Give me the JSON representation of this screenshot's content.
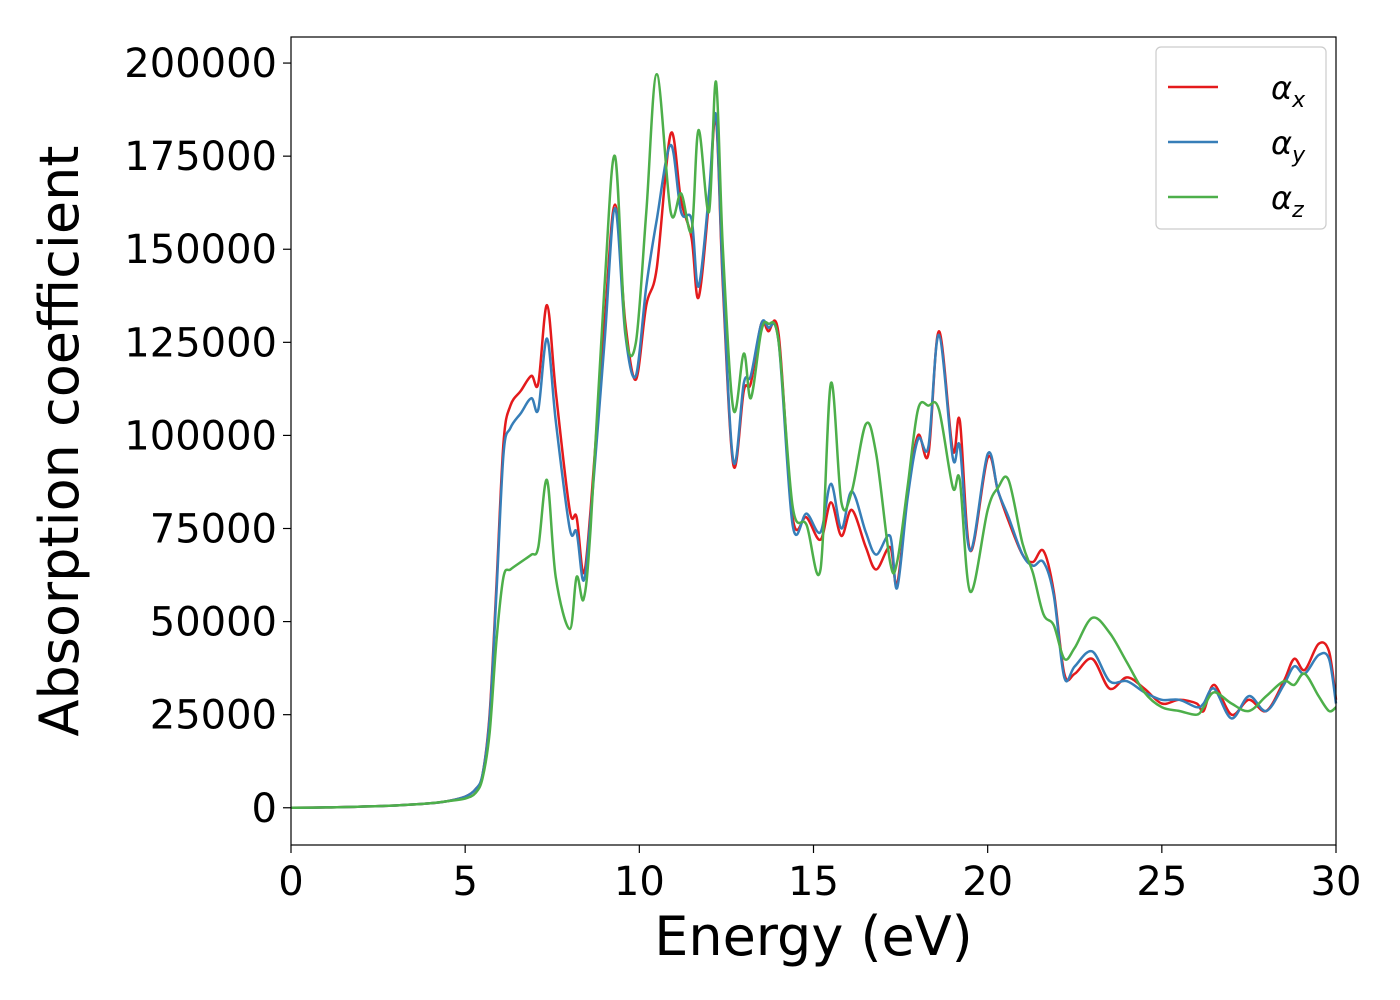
{
  "chart_data": {
    "type": "line",
    "xlabel": "Energy (eV)",
    "ylabel": "Absorption coefficient",
    "xlim": [
      0,
      30
    ],
    "ylim": [
      -10000,
      207000
    ],
    "xticks": [
      0,
      5,
      10,
      15,
      20,
      25,
      30
    ],
    "yticks": [
      0,
      25000,
      50000,
      75000,
      100000,
      125000,
      150000,
      175000,
      200000
    ],
    "grid": false,
    "legend_position": "top-right",
    "colors": {
      "alpha_x": "#e41a1c",
      "alpha_y": "#377eb8",
      "alpha_z": "#4daf4a"
    },
    "series": [
      {
        "key": "alpha_x",
        "name": "α_x",
        "legend_base": "α",
        "legend_sub": "x",
        "color": "#e41a1c",
        "x": [
          0,
          1,
          2,
          3,
          4,
          4.5,
          5,
          5.3,
          5.5,
          5.7,
          5.9,
          6.1,
          6.3,
          6.6,
          6.9,
          7.1,
          7.35,
          7.6,
          8.0,
          8.2,
          8.4,
          8.6,
          9.0,
          9.3,
          9.6,
          9.9,
          10.2,
          10.5,
          10.9,
          11.2,
          11.5,
          11.7,
          12.0,
          12.2,
          12.4,
          12.7,
          13.0,
          13.2,
          13.5,
          13.7,
          14.0,
          14.4,
          14.8,
          15.2,
          15.5,
          15.8,
          16.1,
          16.5,
          16.8,
          17.2,
          17.4,
          17.7,
          18.0,
          18.3,
          18.6,
          19.0,
          19.2,
          19.5,
          20.0,
          20.3,
          20.6,
          21.0,
          21.3,
          21.6,
          21.9,
          22.2,
          22.5,
          23.0,
          23.5,
          24.0,
          24.5,
          25.0,
          25.5,
          26.0,
          26.2,
          26.5,
          27.0,
          27.5,
          28.0,
          28.5,
          28.8,
          29.1,
          29.5,
          29.8,
          30.0
        ],
        "values": [
          0,
          100,
          300,
          600,
          1200,
          1800,
          3000,
          5000,
          9000,
          25000,
          60000,
          98000,
          108000,
          112000,
          116000,
          114000,
          135000,
          112000,
          80000,
          78000,
          63000,
          80000,
          130000,
          162000,
          130000,
          115000,
          135000,
          145000,
          181000,
          163000,
          153000,
          137000,
          163000,
          185000,
          140000,
          92000,
          112000,
          114000,
          130000,
          128000,
          127000,
          78000,
          78000,
          72000,
          82000,
          73000,
          80000,
          70000,
          64000,
          70000,
          60000,
          84000,
          100000,
          95000,
          128000,
          96000,
          104000,
          69000,
          94000,
          85000,
          77000,
          68000,
          66000,
          69000,
          58000,
          36000,
          36000,
          40000,
          32000,
          35000,
          32000,
          28000,
          29000,
          28000,
          26000,
          33000,
          25000,
          29000,
          26000,
          34000,
          40000,
          37000,
          44000,
          42000,
          29000
        ],
        "stroke": "#e41a1c"
      },
      {
        "key": "alpha_y",
        "name": "α_y",
        "legend_base": "α",
        "legend_sub": "y",
        "color": "#377eb8",
        "x": [
          0,
          1,
          2,
          3,
          4,
          4.5,
          5,
          5.3,
          5.5,
          5.7,
          5.9,
          6.1,
          6.3,
          6.6,
          6.9,
          7.1,
          7.35,
          7.6,
          8.0,
          8.2,
          8.4,
          8.6,
          9.0,
          9.3,
          9.6,
          9.9,
          10.2,
          10.5,
          10.9,
          11.2,
          11.5,
          11.7,
          12.0,
          12.2,
          12.4,
          12.7,
          13.0,
          13.2,
          13.5,
          13.7,
          14.0,
          14.4,
          14.8,
          15.2,
          15.5,
          15.8,
          16.1,
          16.5,
          16.8,
          17.2,
          17.4,
          17.7,
          18.0,
          18.3,
          18.6,
          19.0,
          19.2,
          19.5,
          20.0,
          20.3,
          20.6,
          21.0,
          21.3,
          21.6,
          21.9,
          22.2,
          22.5,
          23.0,
          23.5,
          24.0,
          24.5,
          25.0,
          25.5,
          26.0,
          26.2,
          26.5,
          27.0,
          27.5,
          28.0,
          28.5,
          28.8,
          29.1,
          29.5,
          29.8,
          30.0
        ],
        "values": [
          0,
          100,
          300,
          600,
          1200,
          1800,
          3000,
          5000,
          9000,
          24000,
          58000,
          95000,
          102000,
          106000,
          110000,
          107000,
          126000,
          104000,
          75000,
          74000,
          61000,
          78000,
          125000,
          161000,
          127000,
          116000,
          140000,
          158000,
          178000,
          160000,
          158000,
          140000,
          165000,
          186000,
          142000,
          93000,
          114000,
          116000,
          130000,
          129000,
          125000,
          76000,
          79000,
          74000,
          87000,
          75000,
          85000,
          74000,
          68000,
          73000,
          59000,
          83000,
          99000,
          97000,
          127000,
          94000,
          97000,
          69000,
          95000,
          85000,
          78000,
          68000,
          65000,
          66000,
          57000,
          35000,
          38000,
          42000,
          34000,
          34000,
          31000,
          29000,
          29000,
          27000,
          28000,
          32000,
          24000,
          30000,
          26000,
          33000,
          38000,
          36000,
          41000,
          40000,
          28000
        ],
        "stroke": "#377eb8"
      },
      {
        "key": "alpha_z",
        "name": "α_z",
        "legend_base": "α",
        "legend_sub": "z",
        "color": "#4daf4a",
        "x": [
          0,
          1,
          2,
          3,
          4,
          4.5,
          5,
          5.3,
          5.5,
          5.7,
          5.9,
          6.1,
          6.3,
          6.6,
          6.9,
          7.1,
          7.35,
          7.6,
          8.0,
          8.2,
          8.4,
          8.6,
          9.0,
          9.3,
          9.6,
          9.9,
          10.2,
          10.5,
          10.9,
          11.2,
          11.5,
          11.7,
          12.0,
          12.2,
          12.4,
          12.7,
          13.0,
          13.2,
          13.5,
          13.7,
          14.0,
          14.4,
          14.8,
          15.2,
          15.5,
          15.8,
          16.1,
          16.5,
          16.8,
          17.2,
          17.4,
          17.7,
          18.0,
          18.3,
          18.6,
          19.0,
          19.2,
          19.5,
          20.0,
          20.3,
          20.6,
          21.0,
          21.3,
          21.6,
          21.9,
          22.2,
          22.5,
          23.0,
          23.5,
          24.0,
          24.5,
          25.0,
          25.5,
          26.0,
          26.2,
          26.5,
          27.0,
          27.5,
          28.0,
          28.5,
          28.8,
          29.1,
          29.5,
          29.8,
          30.0
        ],
        "values": [
          0,
          100,
          300,
          600,
          1200,
          1800,
          2500,
          4000,
          8000,
          20000,
          45000,
          62000,
          64000,
          66000,
          68000,
          70000,
          88000,
          62000,
          48000,
          62000,
          56000,
          75000,
          140000,
          175000,
          128000,
          125000,
          160000,
          197000,
          160000,
          165000,
          155000,
          182000,
          160000,
          195000,
          150000,
          107000,
          122000,
          110000,
          128000,
          130000,
          125000,
          81000,
          76000,
          64000,
          114000,
          82000,
          85000,
          103000,
          95000,
          66000,
          66000,
          86000,
          107000,
          108000,
          107000,
          86000,
          88000,
          58000,
          80000,
          86000,
          88000,
          71000,
          63000,
          52000,
          49000,
          40000,
          43000,
          51000,
          47000,
          39000,
          31000,
          27000,
          26000,
          25000,
          27000,
          31000,
          28000,
          26000,
          30000,
          34000,
          33000,
          36000,
          30000,
          26000,
          27000
        ],
        "stroke": "#4daf4a"
      }
    ]
  }
}
